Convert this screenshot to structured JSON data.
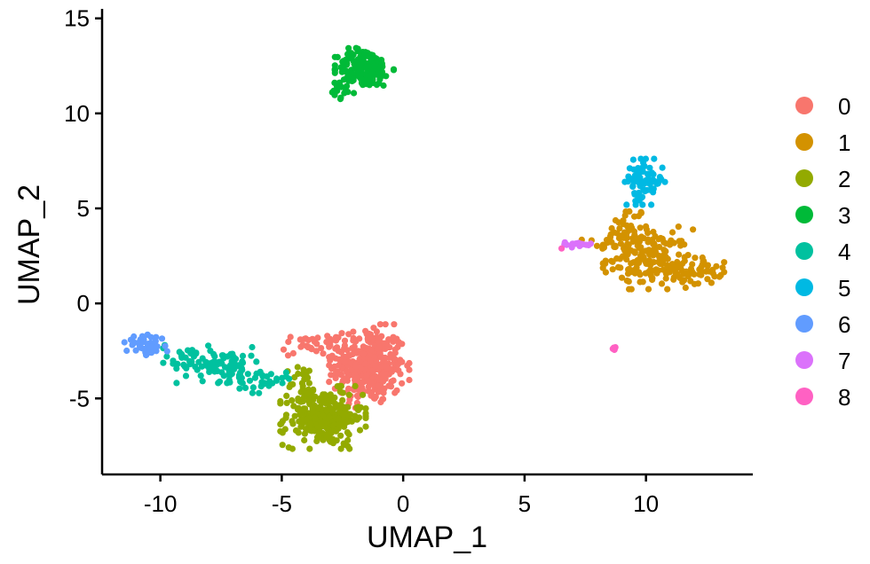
{
  "chart_data": {
    "type": "scatter",
    "xlabel": "UMAP_1",
    "ylabel": "UMAP_2",
    "xlim": [
      -12.4,
      14.4
    ],
    "ylim": [
      -9.0,
      15.5
    ],
    "xticks": [
      -10,
      -5,
      0,
      5,
      10
    ],
    "yticks": [
      -5,
      0,
      5,
      10,
      15
    ],
    "grid": false,
    "legend_position": "right",
    "series": [
      {
        "name": "0",
        "color": "#F8766D",
        "clusters": [
          {
            "center": [
              -1.4,
              -3.3
            ],
            "spread": [
              0.75,
              1.0
            ],
            "n": 340
          },
          {
            "center": [
              -3.6,
              -2.2
            ],
            "spread": [
              0.7,
              0.3
            ],
            "n": 40
          }
        ]
      },
      {
        "name": "1",
        "color": "#D39200",
        "clusters": [
          {
            "center": [
              10.1,
              2.4
            ],
            "spread": [
              0.85,
              0.75
            ],
            "n": 160
          },
          {
            "center": [
              11.9,
              1.7
            ],
            "spread": [
              0.6,
              0.35
            ],
            "n": 60
          },
          {
            "center": [
              9.3,
              4.0
            ],
            "spread": [
              0.35,
              0.55
            ],
            "n": 35
          },
          {
            "center": [
              8.3,
              3.1
            ],
            "spread": [
              0.45,
              0.15
            ],
            "n": 15
          }
        ]
      },
      {
        "name": "2",
        "color": "#93AA00",
        "clusters": [
          {
            "center": [
              -3.3,
              -6.0
            ],
            "spread": [
              0.8,
              0.75
            ],
            "n": 260
          },
          {
            "center": [
              -4.1,
              -4.3
            ],
            "spread": [
              0.3,
              0.55
            ],
            "n": 25
          }
        ]
      },
      {
        "name": "3",
        "color": "#00BA38",
        "clusters": [
          {
            "center": [
              -1.6,
              12.4
            ],
            "spread": [
              0.55,
              0.5
            ],
            "n": 170
          },
          {
            "center": [
              -2.4,
              11.4
            ],
            "spread": [
              0.3,
              0.3
            ],
            "n": 25
          }
        ]
      },
      {
        "name": "4",
        "color": "#00C19F",
        "clusters": [
          {
            "center": [
              -7.5,
              -3.2
            ],
            "spread": [
              0.9,
              0.45
            ],
            "n": 90
          },
          {
            "center": [
              -5.8,
              -4.1
            ],
            "spread": [
              0.5,
              0.3
            ],
            "n": 30
          },
          {
            "center": [
              -9.0,
              -2.6
            ],
            "spread": [
              0.4,
              0.25
            ],
            "n": 20
          }
        ]
      },
      {
        "name": "5",
        "color": "#00B9E3",
        "clusters": [
          {
            "center": [
              9.9,
              6.4
            ],
            "spread": [
              0.4,
              0.55
            ],
            "n": 75
          }
        ]
      },
      {
        "name": "6",
        "color": "#619CFF",
        "clusters": [
          {
            "center": [
              -10.6,
              -2.2
            ],
            "spread": [
              0.4,
              0.25
            ],
            "n": 55
          }
        ]
      },
      {
        "name": "7",
        "color": "#DB72FB",
        "clusters": [
          {
            "center": [
              7.1,
              3.1
            ],
            "spread": [
              0.35,
              0.07
            ],
            "n": 20
          }
        ]
      },
      {
        "name": "8",
        "color": "#FF61C3",
        "clusters": [
          {
            "center": [
              8.7,
              -2.4
            ],
            "spread": [
              0.05,
              0.05
            ],
            "n": 6
          },
          {
            "center": [
              6.5,
              2.9
            ],
            "spread": [
              0.02,
              0.02
            ],
            "n": 1
          }
        ]
      }
    ]
  }
}
